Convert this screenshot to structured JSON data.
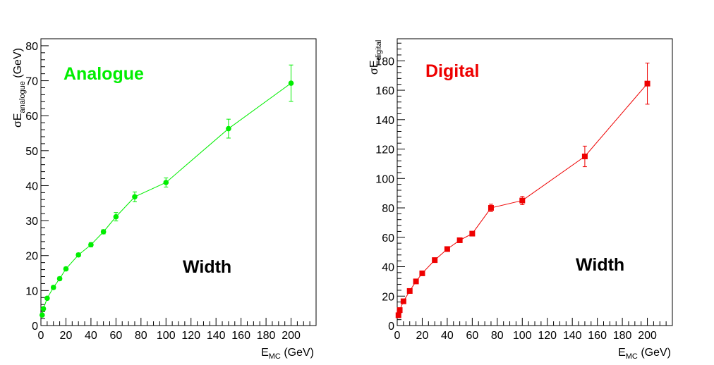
{
  "chart_data": [
    {
      "type": "line",
      "panel": "analogue",
      "title": "",
      "annotation": "Analogue",
      "annotation_color": "#00ee00",
      "subtitle_annotation": "Width",
      "xlabel": {
        "main": "E",
        "sub": "MC",
        "rest": " (GeV)"
      },
      "ylabel": {
        "main": "σE",
        "sub": "analogue",
        "rest": " (GeV)"
      },
      "xlim": [
        0,
        220
      ],
      "ylim": [
        0,
        82
      ],
      "xticks": [
        0,
        20,
        40,
        60,
        80,
        100,
        120,
        140,
        160,
        180,
        200
      ],
      "yticks": [
        0,
        10,
        20,
        30,
        40,
        50,
        60,
        70,
        80
      ],
      "marker": "circle",
      "color": "#00ee00",
      "grid": false,
      "series": [
        {
          "points": [
            {
              "x": 1,
              "y": 3.0,
              "err": 0.3
            },
            {
              "x": 2,
              "y": 4.8,
              "err": 0.4
            },
            {
              "x": 5,
              "y": 7.8,
              "err": 0.4
            },
            {
              "x": 10,
              "y": 10.9,
              "err": 0.5
            },
            {
              "x": 15,
              "y": 13.4,
              "err": 0.5
            },
            {
              "x": 20,
              "y": 16.2,
              "err": 0.5
            },
            {
              "x": 30,
              "y": 20.2,
              "err": 0.5
            },
            {
              "x": 40,
              "y": 23.1,
              "err": 0.6
            },
            {
              "x": 50,
              "y": 26.8,
              "err": 0.6
            },
            {
              "x": 60,
              "y": 31.1,
              "err": 1.2
            },
            {
              "x": 75,
              "y": 36.8,
              "err": 1.4
            },
            {
              "x": 100,
              "y": 40.9,
              "err": 1.3
            },
            {
              "x": 150,
              "y": 56.3,
              "err": 2.7
            },
            {
              "x": 200,
              "y": 69.3,
              "err": 5.2
            }
          ]
        }
      ]
    },
    {
      "type": "line",
      "panel": "digital",
      "title": "",
      "annotation": "Digital",
      "annotation_color": "#ee0000",
      "subtitle_annotation": "Width",
      "xlabel": {
        "main": "E",
        "sub": "MC",
        "rest": " (GeV)"
      },
      "ylabel": {
        "main": "σE",
        "sub": "digital",
        "rest": ""
      },
      "xlim": [
        0,
        220
      ],
      "ylim": [
        0,
        195
      ],
      "xticks": [
        0,
        20,
        40,
        60,
        80,
        100,
        120,
        140,
        160,
        180,
        200
      ],
      "yticks": [
        0,
        20,
        40,
        60,
        80,
        100,
        120,
        140,
        160,
        180
      ],
      "marker": "square",
      "color": "#ee0000",
      "grid": false,
      "series": [
        {
          "points": [
            {
              "x": 1,
              "y": 7.0,
              "err": 0.5
            },
            {
              "x": 2,
              "y": 10.5,
              "err": 0.6
            },
            {
              "x": 5,
              "y": 16.5,
              "err": 0.7
            },
            {
              "x": 10,
              "y": 23.5,
              "err": 0.8
            },
            {
              "x": 15,
              "y": 30.0,
              "err": 0.8
            },
            {
              "x": 20,
              "y": 35.5,
              "err": 0.9
            },
            {
              "x": 30,
              "y": 44.5,
              "err": 1.0
            },
            {
              "x": 40,
              "y": 52.0,
              "err": 1.0
            },
            {
              "x": 50,
              "y": 58.0,
              "err": 1.1
            },
            {
              "x": 60,
              "y": 62.5,
              "err": 1.2
            },
            {
              "x": 75,
              "y": 80.0,
              "err": 2.5
            },
            {
              "x": 100,
              "y": 85.0,
              "err": 2.8
            },
            {
              "x": 150,
              "y": 115.0,
              "err": 7.0
            },
            {
              "x": 200,
              "y": 164.5,
              "err": 14.0
            }
          ]
        }
      ]
    }
  ]
}
